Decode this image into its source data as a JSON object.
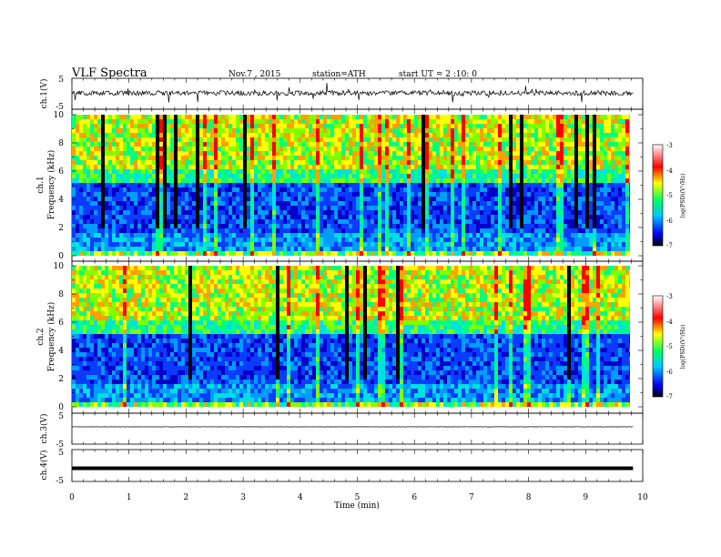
{
  "header": {
    "title": "VLF  Spectra",
    "date": "Nov.7  , 2015",
    "station": "station=ATH",
    "start": "start  UT  =   2  :10: 0"
  },
  "chart_data": [
    {
      "type": "line",
      "panel": "ch1-waveform",
      "ylabel": "ch.1(V)",
      "xlim": [
        0,
        10
      ],
      "ylim": [
        -5,
        5
      ],
      "y_ticks": [
        "5",
        "-5"
      ],
      "baseline": 0.2,
      "spread": 1.6,
      "x_end": 9.83,
      "color": "#000000"
    },
    {
      "type": "heatmap",
      "panel": "ch1-spectrogram",
      "ylabel_channel": "ch.1",
      "ylabel": "Frequency (kHz)",
      "xlim": [
        0,
        9.83
      ],
      "ylim": [
        0,
        10
      ],
      "y_ticks": [
        "0",
        "2",
        "4",
        "6",
        "8",
        "10"
      ],
      "colorbar": {
        "label": "log(PSD)(V²/Hz)",
        "range": [
          -7,
          -3
        ],
        "ticks": [
          "-3",
          "-4",
          "-5",
          "-6",
          "-7"
        ]
      }
    },
    {
      "type": "heatmap",
      "panel": "ch2-spectrogram",
      "ylabel_channel": "ch.2",
      "ylabel": "Frequency (kHz)",
      "xlim": [
        0,
        9.83
      ],
      "ylim": [
        0,
        10
      ],
      "y_ticks": [
        "0",
        "2",
        "4",
        "6",
        "8",
        "10"
      ],
      "colorbar": {
        "label": "log(PSD)(V²/Hz)",
        "range": [
          -7,
          -3
        ],
        "ticks": [
          "-3",
          "-4",
          "-5",
          "-6",
          "-7"
        ]
      }
    },
    {
      "type": "line",
      "panel": "ch3-waveform",
      "ylabel": "ch.3(V)",
      "xlim": [
        0,
        10
      ],
      "ylim": [
        -5,
        5
      ],
      "y_ticks": [
        "5",
        "-5"
      ],
      "baseline": 0.6,
      "spread": 0.1,
      "x_end": 9.83,
      "color": "#000000"
    },
    {
      "type": "line",
      "panel": "ch4-waveform",
      "ylabel": "ch.4(V)",
      "xlim": [
        0,
        10
      ],
      "ylim": [
        -5,
        5
      ],
      "y_ticks": [
        "5",
        "-5"
      ],
      "baseline": 0.3,
      "spread": 0.0,
      "x_end": 9.83,
      "color": "#000000"
    }
  ],
  "x_axis": {
    "label": "Time  (min)",
    "ticks": [
      "0",
      "1",
      "2",
      "3",
      "4",
      "5",
      "6",
      "7",
      "8",
      "9",
      "10"
    ]
  }
}
